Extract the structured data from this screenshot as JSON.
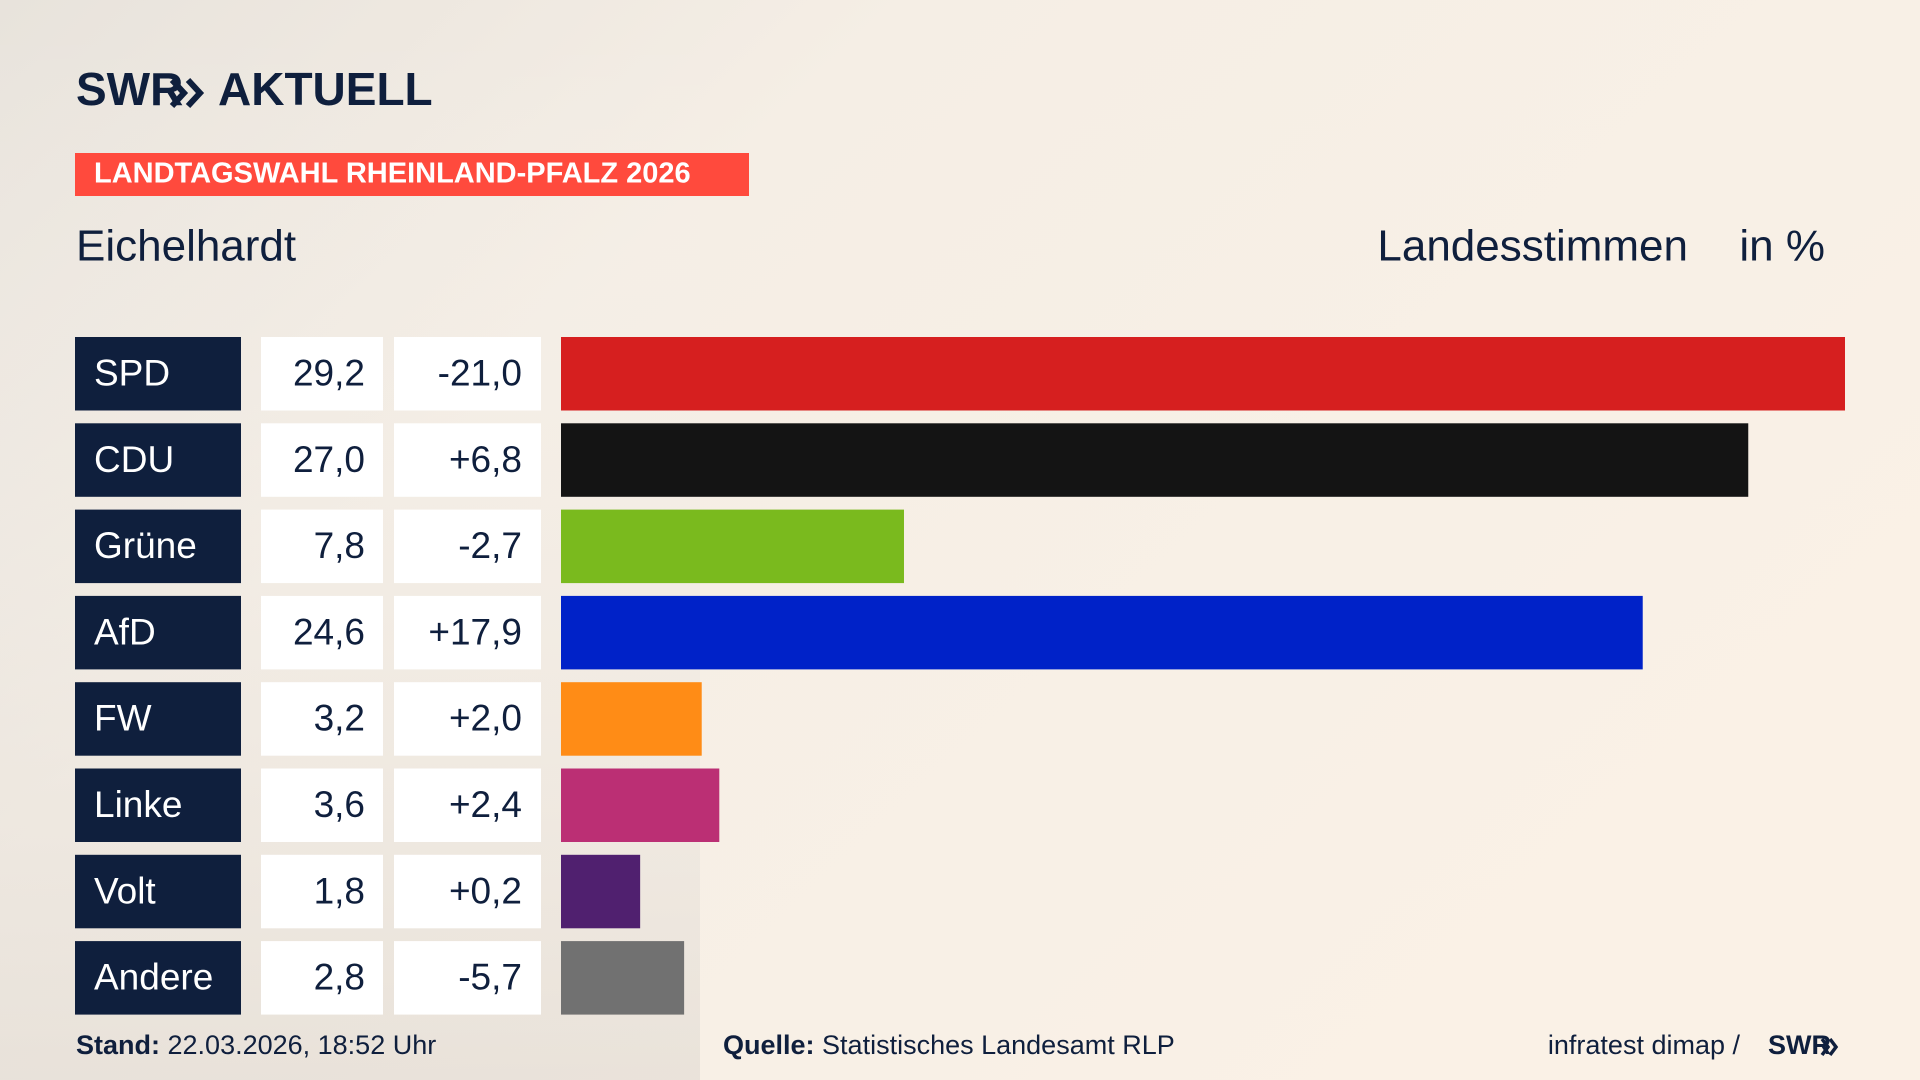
{
  "chart_data": {
    "type": "bar",
    "brand": "SWR",
    "brand_name": "AKTUELL",
    "kicker": "LANDTAGSWAHL RHEINLAND-PFALZ 2026",
    "title": "Eichelhardt",
    "measure": "Landesstimmen",
    "unit": "in %",
    "categories": [
      "SPD",
      "CDU",
      "Grüne",
      "AfD",
      "FW",
      "Linke",
      "Volt",
      "Andere"
    ],
    "values": [
      29.2,
      27.0,
      7.8,
      24.6,
      3.2,
      3.6,
      1.8,
      2.8
    ],
    "value_labels": [
      "29,2",
      "27,0",
      "7,8",
      "24,6",
      "3,2",
      "3,6",
      "1,8",
      "2,8"
    ],
    "changes": [
      -21.0,
      6.8,
      -2.7,
      17.9,
      2.0,
      2.4,
      0.2,
      -5.7
    ],
    "change_labels": [
      "-21,0",
      "+6,8",
      "-2,7",
      "+17,9",
      "+2,0",
      "+2,4",
      "+0,2",
      "-5,7"
    ],
    "colors": [
      "#d61f1f",
      "#141414",
      "#7aba1e",
      "#0022c8",
      "#ff8c16",
      "#bb2f74",
      "#50206f",
      "#717171"
    ],
    "footer": {
      "stand_label": "Stand:",
      "stand": "22.03.2026, 18:52 Uhr",
      "source_label": "Quelle:",
      "source": "Statistisches Landesamt RLP",
      "credit": "infratest dimap /",
      "credit_brand": "SWR"
    }
  }
}
